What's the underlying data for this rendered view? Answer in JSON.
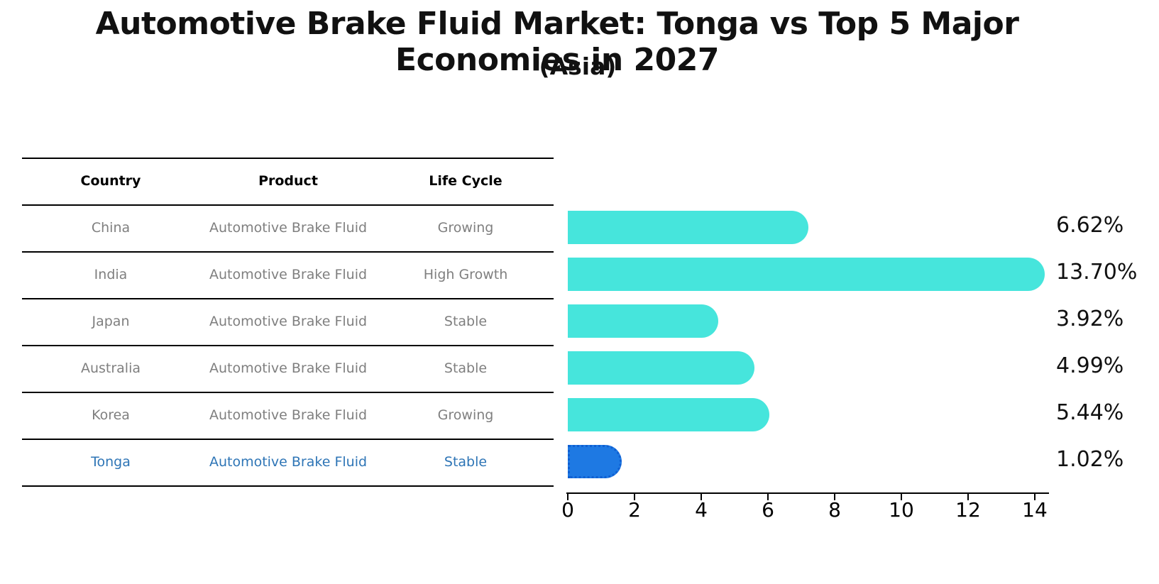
{
  "title": "Automotive Brake Fluid Market: Tonga vs Top 5 Major Economies in 2027",
  "subtitle": "(Asia)",
  "table": {
    "headers": [
      "Country",
      "Product",
      "Life Cycle"
    ],
    "rows": [
      {
        "country": "China",
        "product": "Automotive Brake Fluid",
        "life_cycle": "Growing",
        "highlight": false
      },
      {
        "country": "India",
        "product": "Automotive Brake Fluid",
        "life_cycle": "High Growth",
        "highlight": false
      },
      {
        "country": "Japan",
        "product": "Automotive Brake Fluid",
        "life_cycle": "Stable",
        "highlight": false
      },
      {
        "country": "Australia",
        "product": "Automotive Brake Fluid",
        "life_cycle": "Stable",
        "highlight": false
      },
      {
        "country": "Korea",
        "product": "Automotive Brake Fluid",
        "life_cycle": "Growing",
        "highlight": false
      },
      {
        "country": "Tonga",
        "product": "Automotive Brake Fluid",
        "life_cycle": "Stable",
        "highlight": true
      }
    ]
  },
  "chart_data": {
    "type": "bar",
    "orientation": "horizontal",
    "title": "Automotive Brake Fluid Market: Tonga vs Top 5 Major Economies in 2027",
    "subtitle": "(Asia)",
    "categories": [
      "China",
      "India",
      "Japan",
      "Australia",
      "Korea",
      "Tonga"
    ],
    "values": [
      6.62,
      13.7,
      3.92,
      4.99,
      5.44,
      1.02
    ],
    "value_labels": [
      "6.62%",
      "13.70%",
      "3.92%",
      "4.99%",
      "5.44%",
      "1.02%"
    ],
    "xlabel": "",
    "ylabel": "",
    "xlim": [
      0,
      14.4
    ],
    "x_ticks": [
      "0",
      "2",
      "4",
      "6",
      "8",
      "10",
      "12",
      "14"
    ],
    "grid": false,
    "legend": false,
    "bar_color": "#46E5DC",
    "highlight": {
      "index": 5,
      "category": "Tonga",
      "color": "#1E79E3",
      "style": "dotted-outline"
    }
  },
  "colors": {
    "turquoise": "#46E5DC",
    "highlight-blue": "#1E79E3",
    "highlight-border": "#0F5FD2",
    "link-blue": "#2E75B6",
    "muted-gray": "#7f7f7f",
    "axis-black": "#000000"
  }
}
